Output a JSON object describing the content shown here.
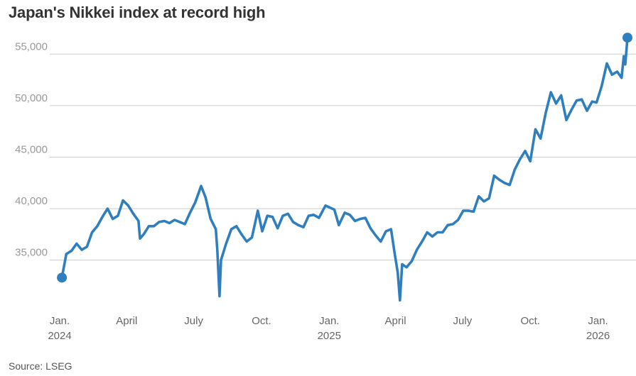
{
  "chart_data": {
    "type": "line",
    "title": "Japan's Nikkei index at record high",
    "xlabel": "",
    "ylabel": "",
    "source": "Source: LSEG",
    "grid": true,
    "line_color": "#2f7fbe",
    "grid_color": "#cccccc",
    "ylim": [
      30500,
      57500
    ],
    "y_ticks": [
      35000,
      40000,
      45000,
      50000,
      55000
    ],
    "y_tick_labels": [
      "35,000",
      "40,000",
      "45,000",
      "50,000",
      "55,000"
    ],
    "x_range": [
      "2024-01-01",
      "2026-02-10"
    ],
    "x_ticks": [
      {
        "date": "2024-01-01",
        "label": "Jan.",
        "year": "2024"
      },
      {
        "date": "2024-04-01",
        "label": "April",
        "year": ""
      },
      {
        "date": "2024-07-01",
        "label": "July",
        "year": ""
      },
      {
        "date": "2024-10-01",
        "label": "Oct.",
        "year": ""
      },
      {
        "date": "2025-01-01",
        "label": "Jan.",
        "year": "2025"
      },
      {
        "date": "2025-04-01",
        "label": "April",
        "year": ""
      },
      {
        "date": "2025-07-01",
        "label": "July",
        "year": ""
      },
      {
        "date": "2025-10-01",
        "label": "Oct.",
        "year": ""
      },
      {
        "date": "2026-01-01",
        "label": "Jan.",
        "year": "2026"
      }
    ],
    "endpoints": [
      {
        "date": "2024-01-04",
        "value": 33300
      },
      {
        "date": "2026-02-10",
        "value": 56600
      }
    ],
    "series": [
      {
        "values": [
          [
            "2024-01-04",
            33300
          ],
          [
            "2024-01-10",
            35600
          ],
          [
            "2024-01-17",
            35900
          ],
          [
            "2024-01-24",
            36600
          ],
          [
            "2024-01-31",
            36000
          ],
          [
            "2024-02-07",
            36300
          ],
          [
            "2024-02-14",
            37700
          ],
          [
            "2024-02-21",
            38300
          ],
          [
            "2024-02-28",
            39200
          ],
          [
            "2024-03-06",
            40000
          ],
          [
            "2024-03-13",
            39000
          ],
          [
            "2024-03-20",
            39300
          ],
          [
            "2024-03-27",
            40800
          ],
          [
            "2024-04-03",
            40300
          ],
          [
            "2024-04-10",
            39500
          ],
          [
            "2024-04-17",
            38800
          ],
          [
            "2024-04-19",
            37100
          ],
          [
            "2024-04-24",
            37500
          ],
          [
            "2024-05-01",
            38300
          ],
          [
            "2024-05-08",
            38300
          ],
          [
            "2024-05-15",
            38700
          ],
          [
            "2024-05-22",
            38800
          ],
          [
            "2024-05-29",
            38600
          ],
          [
            "2024-06-05",
            38900
          ],
          [
            "2024-06-12",
            38700
          ],
          [
            "2024-06-19",
            38500
          ],
          [
            "2024-06-26",
            39600
          ],
          [
            "2024-07-03",
            40600
          ],
          [
            "2024-07-11",
            42200
          ],
          [
            "2024-07-17",
            41100
          ],
          [
            "2024-07-24",
            39000
          ],
          [
            "2024-07-31",
            38000
          ],
          [
            "2024-08-02",
            36000
          ],
          [
            "2024-08-05",
            31500
          ],
          [
            "2024-08-07",
            35000
          ],
          [
            "2024-08-14",
            36600
          ],
          [
            "2024-08-21",
            38000
          ],
          [
            "2024-08-28",
            38300
          ],
          [
            "2024-09-04",
            37500
          ],
          [
            "2024-09-11",
            36800
          ],
          [
            "2024-09-18",
            37200
          ],
          [
            "2024-09-26",
            39800
          ],
          [
            "2024-10-02",
            37800
          ],
          [
            "2024-10-09",
            39300
          ],
          [
            "2024-10-16",
            39200
          ],
          [
            "2024-10-23",
            38100
          ],
          [
            "2024-10-30",
            39300
          ],
          [
            "2024-11-06",
            39500
          ],
          [
            "2024-11-13",
            38700
          ],
          [
            "2024-11-20",
            38400
          ],
          [
            "2024-11-27",
            38200
          ],
          [
            "2024-12-04",
            39300
          ],
          [
            "2024-12-11",
            39400
          ],
          [
            "2024-12-18",
            39100
          ],
          [
            "2024-12-27",
            40300
          ],
          [
            "2025-01-08",
            39900
          ],
          [
            "2025-01-14",
            38400
          ],
          [
            "2025-01-22",
            39600
          ],
          [
            "2025-01-29",
            39400
          ],
          [
            "2025-02-05",
            38800
          ],
          [
            "2025-02-12",
            39000
          ],
          [
            "2025-02-19",
            39100
          ],
          [
            "2025-02-26",
            38100
          ],
          [
            "2025-03-05",
            37400
          ],
          [
            "2025-03-12",
            36800
          ],
          [
            "2025-03-19",
            37800
          ],
          [
            "2025-03-26",
            38000
          ],
          [
            "2025-03-31",
            35600
          ],
          [
            "2025-04-04",
            33800
          ],
          [
            "2025-04-07",
            31100
          ],
          [
            "2025-04-10",
            34600
          ],
          [
            "2025-04-16",
            34300
          ],
          [
            "2025-04-23",
            34900
          ],
          [
            "2025-04-30",
            36000
          ],
          [
            "2025-05-07",
            36800
          ],
          [
            "2025-05-14",
            37700
          ],
          [
            "2025-05-21",
            37300
          ],
          [
            "2025-05-28",
            37700
          ],
          [
            "2025-06-04",
            37700
          ],
          [
            "2025-06-11",
            38400
          ],
          [
            "2025-06-18",
            38500
          ],
          [
            "2025-06-25",
            38900
          ],
          [
            "2025-07-02",
            39800
          ],
          [
            "2025-07-09",
            39800
          ],
          [
            "2025-07-16",
            39700
          ],
          [
            "2025-07-23",
            41200
          ],
          [
            "2025-07-30",
            40700
          ],
          [
            "2025-08-06",
            41000
          ],
          [
            "2025-08-13",
            43200
          ],
          [
            "2025-08-20",
            42800
          ],
          [
            "2025-08-27",
            42500
          ],
          [
            "2025-09-03",
            42300
          ],
          [
            "2025-09-10",
            43800
          ],
          [
            "2025-09-17",
            44800
          ],
          [
            "2025-09-24",
            45600
          ],
          [
            "2025-10-01",
            44600
          ],
          [
            "2025-10-08",
            47700
          ],
          [
            "2025-10-15",
            46800
          ],
          [
            "2025-10-22",
            49300
          ],
          [
            "2025-10-29",
            51300
          ],
          [
            "2025-11-05",
            50200
          ],
          [
            "2025-11-12",
            51000
          ],
          [
            "2025-11-19",
            48600
          ],
          [
            "2025-11-26",
            49600
          ],
          [
            "2025-12-03",
            50500
          ],
          [
            "2025-12-10",
            50600
          ],
          [
            "2025-12-17",
            49500
          ],
          [
            "2025-12-24",
            50400
          ],
          [
            "2025-12-30",
            50300
          ],
          [
            "2026-01-06",
            51900
          ],
          [
            "2026-01-13",
            54100
          ],
          [
            "2026-01-20",
            53000
          ],
          [
            "2026-01-27",
            53300
          ],
          [
            "2026-02-02",
            52700
          ],
          [
            "2026-02-05",
            54800
          ],
          [
            "2026-02-07",
            54000
          ],
          [
            "2026-02-10",
            56600
          ]
        ]
      }
    ]
  }
}
